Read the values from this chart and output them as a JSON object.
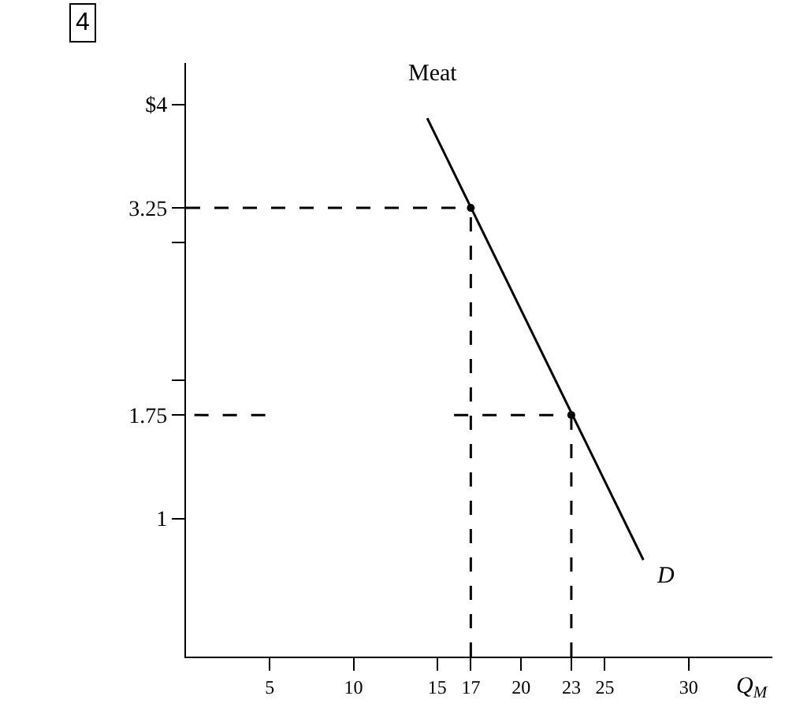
{
  "chart_data": {
    "type": "line",
    "xlabel": "Q$_{M}$",
    "xlim": [
      0,
      35
    ],
    "ylim": [
      0,
      4.3
    ],
    "xticks": [
      5,
      10,
      15,
      17,
      20,
      23,
      25,
      30
    ],
    "yticks": [
      1,
      1.75,
      {
        "value": 2,
        "label": null
      },
      {
        "value": 3,
        "label": null
      },
      3.25,
      {
        "value": 4,
        "label": "$4"
      }
    ],
    "series": [
      {
        "type": "line",
        "color": "#000000",
        "x": [
          14.4,
          27.3
        ],
        "values": [
          3.9,
          0.7
        ],
        "line_style": "solid",
        "marker": "none"
      },
      {
        "type": "scatter",
        "color": "#000000",
        "x": [
          17,
          23
        ],
        "values": [
          3.25,
          1.75
        ],
        "marker": "circle"
      },
      {
        "color": "#000000",
        "x": [
          0,
          17
        ],
        "values": [
          3.25,
          3.25
        ],
        "line_style": "dashed",
        "marker": "none"
      },
      {
        "color": "#000000",
        "x": [
          0.5,
          5,
          10,
          16,
          23
        ],
        "values": [
          1.75,
          1.75,
          null,
          1.75,
          1.75
        ],
        "line_style": "dashed",
        "marker": "none"
      },
      {
        "color": "#000000",
        "x": [
          17,
          17
        ],
        "values": [
          0,
          3.25
        ],
        "line_style": "dashed",
        "marker": "none"
      },
      {
        "color": "#000000",
        "x": [
          23,
          23
        ],
        "values": [
          0,
          1.75
        ],
        "line_style": "dashed",
        "marker": "none"
      }
    ],
    "annotations": [
      "4",
      {
        "text": "Meat",
        "x": 14.4,
        "y": 3.9
      },
      {
        "text": "D",
        "x": 27.3,
        "y": 0.7
      }
    ]
  }
}
